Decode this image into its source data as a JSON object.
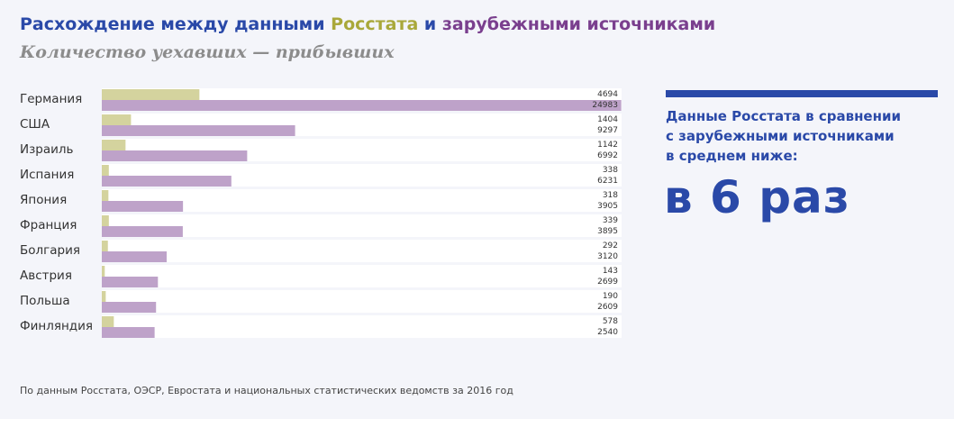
{
  "header": {
    "title_part1": "Расхождение между данными ",
    "title_rosstat": "Росстата",
    "title_part2": " и ",
    "title_foreign": "зарубежными источниками",
    "subtitle": "Количество уехавших — прибывших"
  },
  "callout": {
    "line1": "Данные Росстата в сравнении",
    "line2": "с зарубежными источниками",
    "line3": "в среднем ниже:",
    "big": "в 6 раз",
    "accent_color": "#2a49a8"
  },
  "footnote": "По данным Росстата, ОЭСР, Евростата и национальных статистических ведомств за 2016 год",
  "colors": {
    "rosstat": "#d4d39e",
    "foreign": "#bea2c9",
    "title_blue": "#2a49a8",
    "title_olive": "#a9a83a",
    "title_purple": "#7a3f8e"
  },
  "chart_data": {
    "type": "bar",
    "orientation": "horizontal",
    "categories": [
      "Германия",
      "США",
      "Израиль",
      "Испания",
      "Япония",
      "Франция",
      "Болгария",
      "Австрия",
      "Польша",
      "Финляндия"
    ],
    "series": [
      {
        "values": [
          4694,
          1404,
          1142,
          338,
          318,
          339,
          292,
          143,
          190,
          578
        ]
      },
      {
        "values": [
          24983,
          9297,
          6992,
          6231,
          3905,
          3895,
          3120,
          2699,
          2609,
          2540
        ]
      }
    ],
    "xlim": [
      0,
      25000
    ],
    "grid": false
  }
}
